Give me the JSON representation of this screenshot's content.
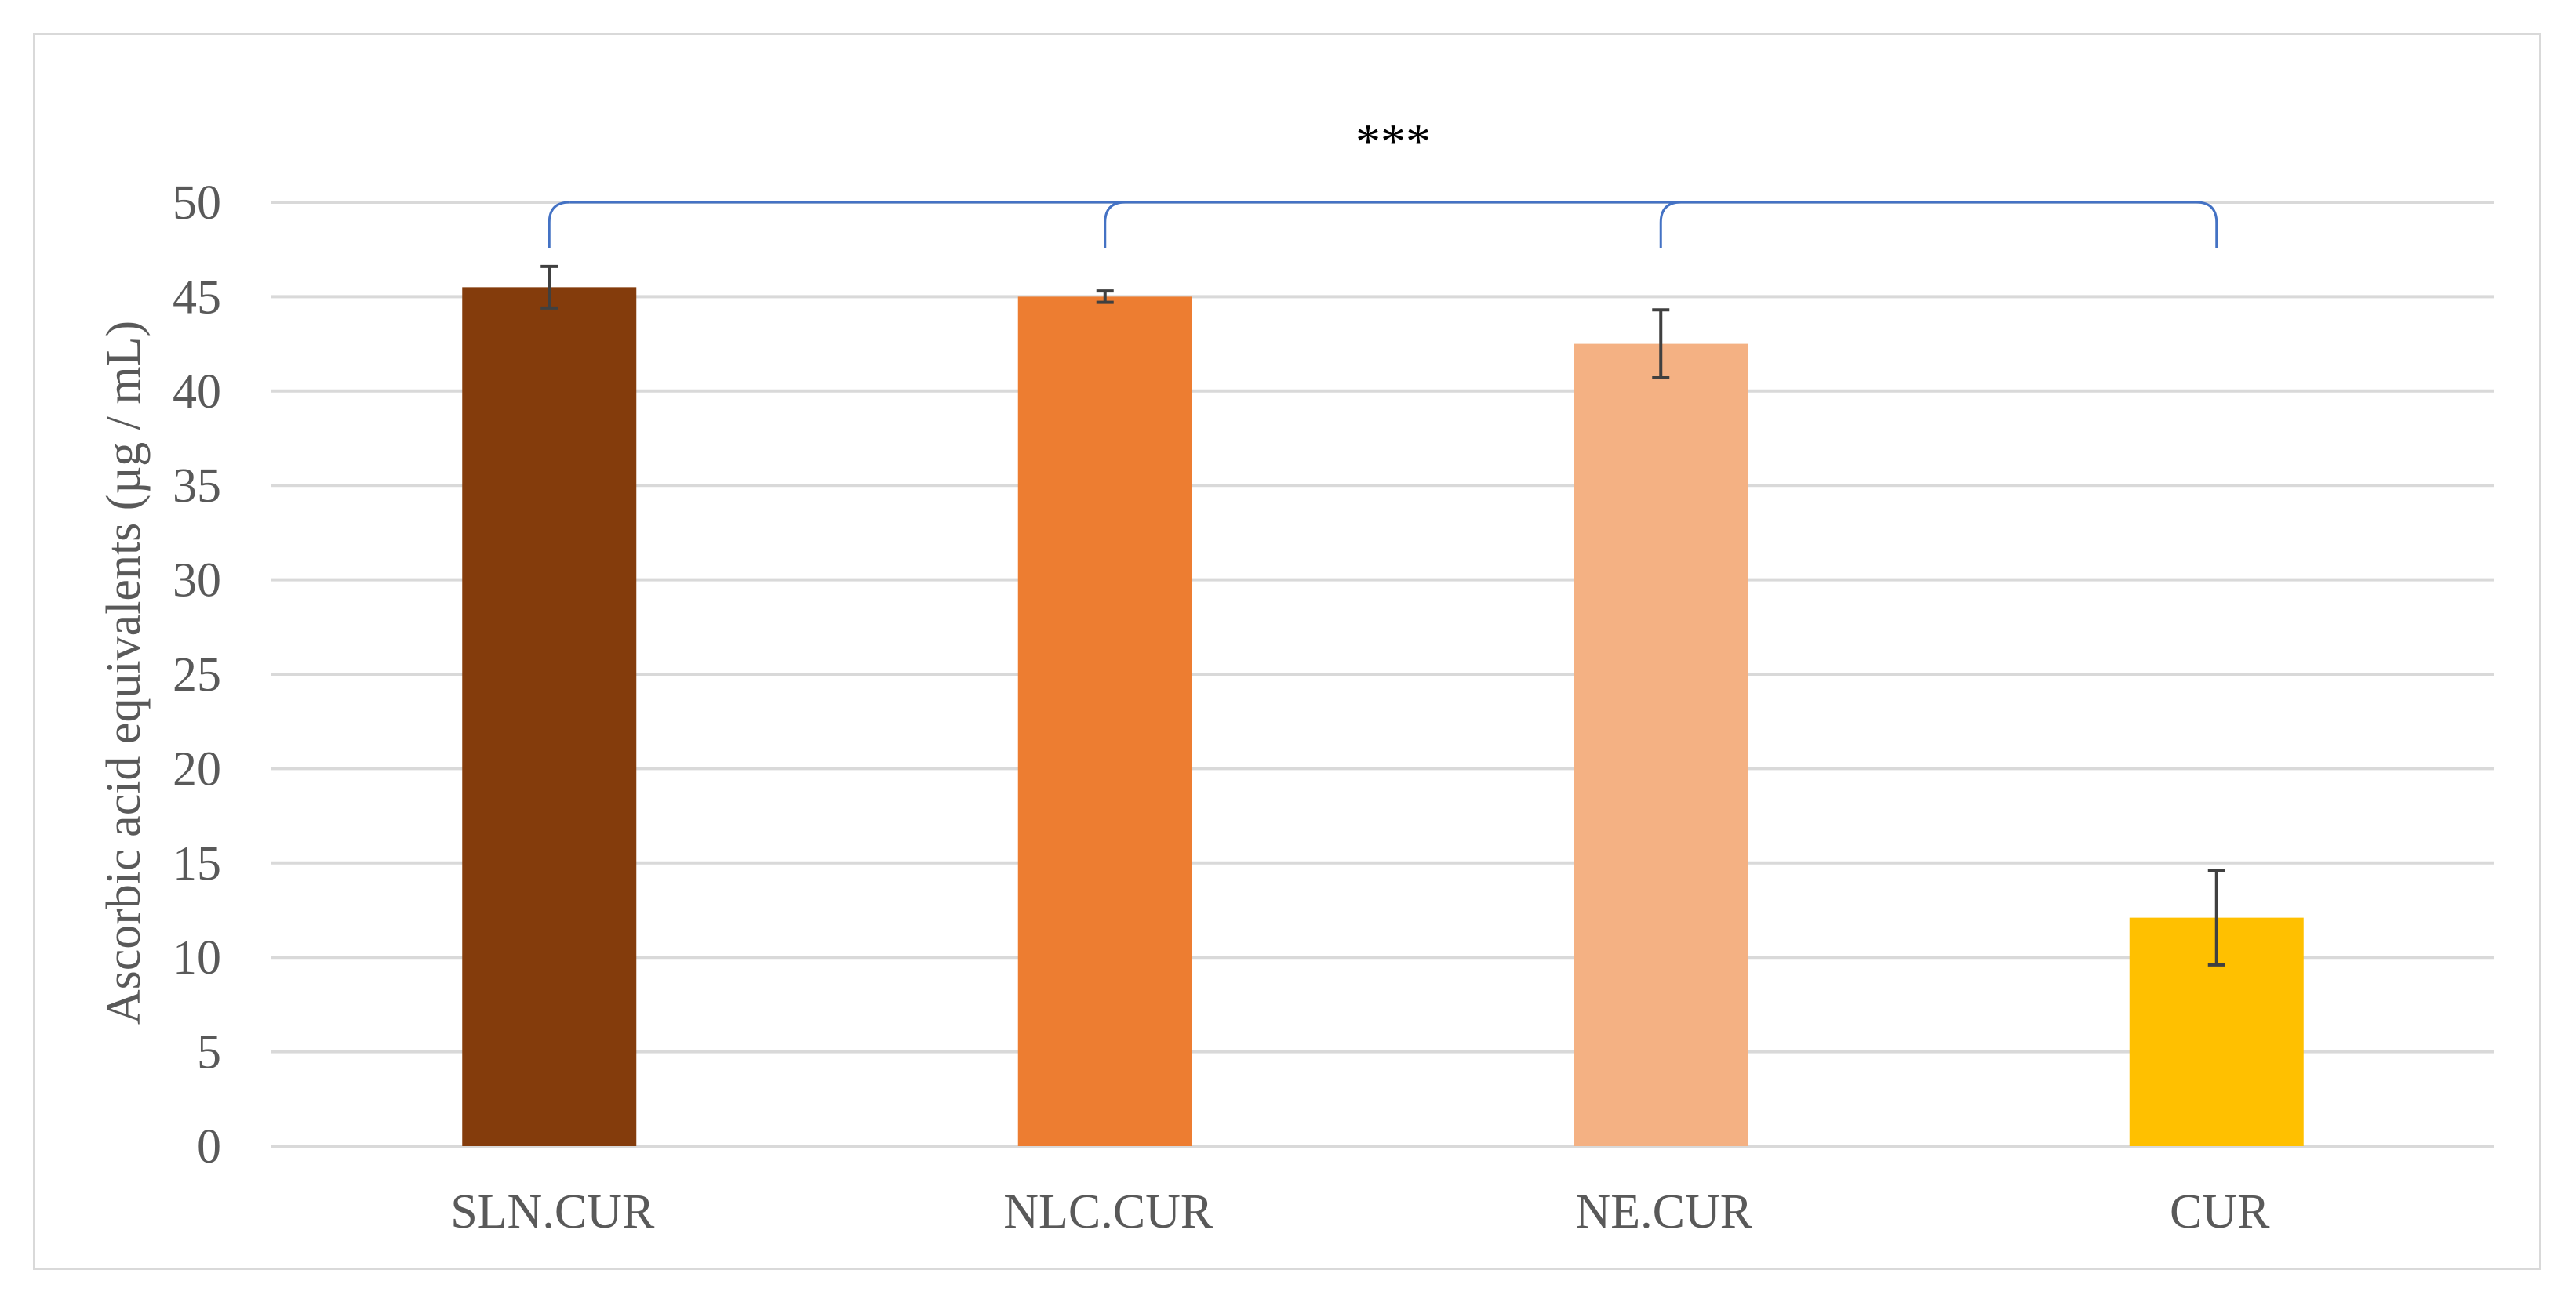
{
  "chart_data": {
    "type": "bar",
    "title": "",
    "xlabel": "",
    "ylabel": "Ascorbic acid equivalents (µg / mL)",
    "ylim": [
      0,
      50
    ],
    "yticks": [
      0,
      5,
      10,
      15,
      20,
      25,
      30,
      35,
      40,
      45,
      50
    ],
    "grid": true,
    "legend": "none",
    "categories": [
      "SLN.CUR",
      "NLC.CUR",
      "NE.CUR",
      "CUR"
    ],
    "values": [
      45.5,
      45.0,
      42.5,
      12.1
    ],
    "error": [
      1.1,
      0.3,
      1.8,
      2.5
    ],
    "colors": [
      "#843c0c",
      "#ed7d31",
      "#f4b183",
      "#ffc000"
    ],
    "gridline_color": "#d9d9d9",
    "bracket_color": "#4472c4",
    "significance_label": "***"
  }
}
